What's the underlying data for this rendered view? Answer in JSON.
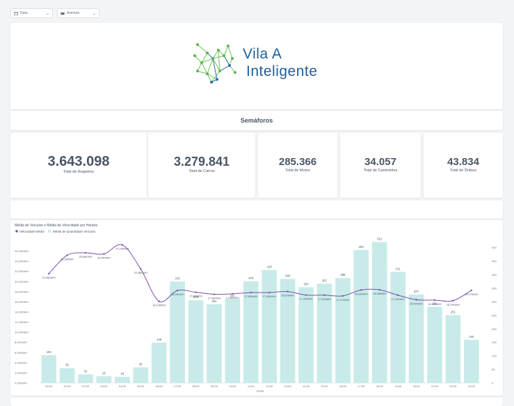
{
  "filters": [
    {
      "label": "Data",
      "icon": "calendar-icon"
    },
    {
      "label": "Avenida",
      "icon": "map-icon"
    }
  ],
  "logo": {
    "line1": "Vila A",
    "line2": "Inteligente",
    "color": "#1f5e9a",
    "accent": "#59b84a"
  },
  "section_title": "Semáforos",
  "stats": [
    {
      "value": "3.643.098",
      "label": "Total de Registros"
    },
    {
      "value": "3.279.841",
      "label": "Total de Carros"
    },
    {
      "value": "285.366",
      "label": "Total de Motos"
    },
    {
      "value": "34.057",
      "label": "Total de Caminhões"
    },
    {
      "value": "43.834",
      "label": "Total de Ônibus"
    }
  ],
  "chart_data": {
    "type": "bar",
    "title": "Média de Veículos e Média de Velocidade por Horário",
    "xlabel": "Hora",
    "categories": [
      "00:00",
      "01:00",
      "02:00",
      "03:00",
      "04:00",
      "05:00",
      "06:00",
      "07:00",
      "08:00",
      "09:00",
      "10:00",
      "11:00",
      "12:00",
      "13:00",
      "14:00",
      "15:00",
      "16:00",
      "17:00",
      "18:00",
      "19:00",
      "20:00",
      "21:00",
      "22:00",
      "23:00"
    ],
    "series": [
      {
        "name": "Velocidade Média",
        "type": "line",
        "axis": "left",
        "color": "#7b4fa8",
        "values": [
          21.55,
          25.18,
          25.66,
          25.44,
          27.22,
          22.48,
          16.1,
          18.23,
          17.89,
          17.49,
          17.58,
          17.83,
          17.83,
          18.02,
          17.34,
          17.32,
          17.17,
          18.34,
          18.38,
          17.31,
          16.42,
          16.34,
          16.23,
          18.27
        ],
        "labels": [
          "21,55KM/H",
          "25,18KM/H",
          "25,66KM/H",
          "25,44KM/H",
          "27,22KM/H",
          "22,48KM/H",
          "16,10KM/H",
          "18,23KM/H",
          "17,89KM/H",
          "17,49KM/H",
          "17,58KM/H",
          "17,83KM/H",
          "17,83KM/H",
          "18,02KM/H",
          "17,34KM/H",
          "17,32KM/H",
          "17,17KM/H",
          "18,34KM/H",
          "18,38KM/H",
          "17,31KM/H",
          "16,42KM/H",
          "16,34KM/H",
          "16,23KM/H",
          "18,27KM/H"
        ]
      },
      {
        "name": "Média de Quantidade Veículos",
        "type": "bar",
        "axis": "right",
        "color": "#c8ebe9",
        "values": [
          103,
          55,
          32,
          25,
          23,
          58,
          149,
          375,
          306,
          291,
          311,
          376,
          418,
          385,
          354,
          367,
          388,
          492,
          521,
          411,
          327,
          282,
          251,
          160
        ]
      }
    ],
    "left_axis": {
      "ylim": [
        0,
        28
      ],
      "ticks": [
        "0,00KM/H",
        "2,00KM/H",
        "4,00KM/H",
        "6,00KM/H",
        "8,00KM/H",
        "10,00KM/H",
        "12,00KM/H",
        "14,00KM/H",
        "16,00KM/H",
        "18,00KM/H",
        "20,00KM/H",
        "22,00KM/H",
        "24,00KM/H",
        "26,00KM/H"
      ]
    },
    "right_axis": {
      "ylim": [
        0,
        525
      ],
      "ticks": [
        "0",
        "50",
        "100",
        "150",
        "200",
        "250",
        "300",
        "350",
        "400",
        "450",
        "500"
      ]
    },
    "legend_position": "top-left"
  }
}
